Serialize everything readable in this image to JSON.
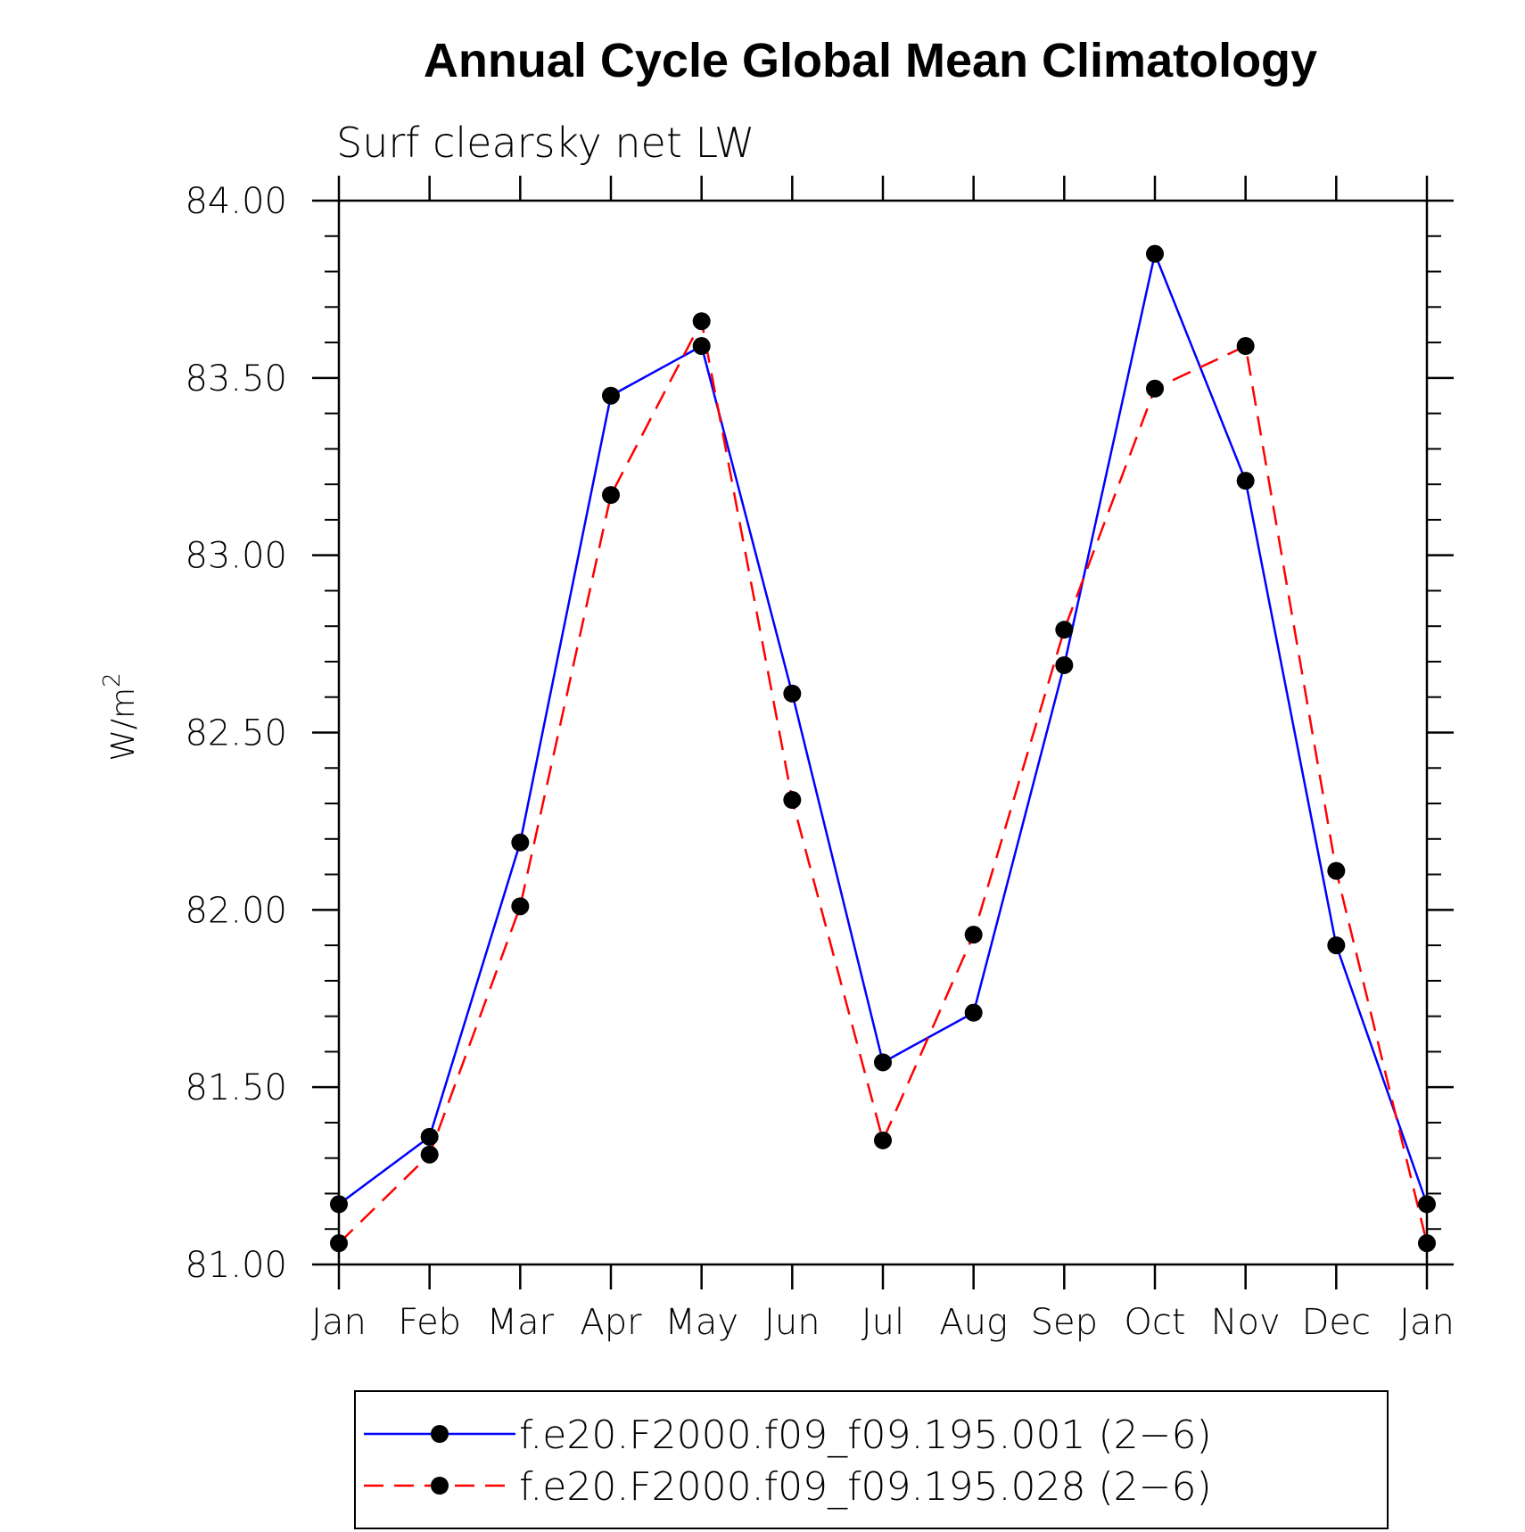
{
  "chart_data": {
    "type": "line",
    "title": "Annual Cycle Global Mean Climatology",
    "subtitle": "Surf clearsky net LW",
    "ylabel": "W/m",
    "ylabel_sup": "2",
    "categories": [
      "Jan",
      "Feb",
      "Mar",
      "Apr",
      "May",
      "Jun",
      "Jul",
      "Aug",
      "Sep",
      "Oct",
      "Nov",
      "Dec",
      "Jan"
    ],
    "ylim": [
      81.0,
      84.0
    ],
    "yticks": [
      "81.00",
      "81.50",
      "82.00",
      "82.50",
      "83.00",
      "83.50",
      "84.00"
    ],
    "series": [
      {
        "name": "f.e20.F2000.f09_f09.195.001 (2−6)",
        "color": "#0000ff",
        "dash": "solid",
        "values": [
          81.17,
          81.36,
          82.19,
          83.45,
          83.59,
          82.61,
          81.57,
          81.71,
          82.69,
          83.85,
          83.21,
          81.9,
          81.17
        ]
      },
      {
        "name": "f.e20.F2000.f09_f09.195.028 (2−6)",
        "color": "#ff0000",
        "dash": "dashed",
        "values": [
          81.06,
          81.31,
          82.01,
          83.17,
          83.66,
          82.31,
          81.35,
          81.93,
          82.79,
          83.47,
          83.59,
          82.11,
          81.06
        ]
      }
    ],
    "grid": false,
    "legend_position": "bottom"
  }
}
